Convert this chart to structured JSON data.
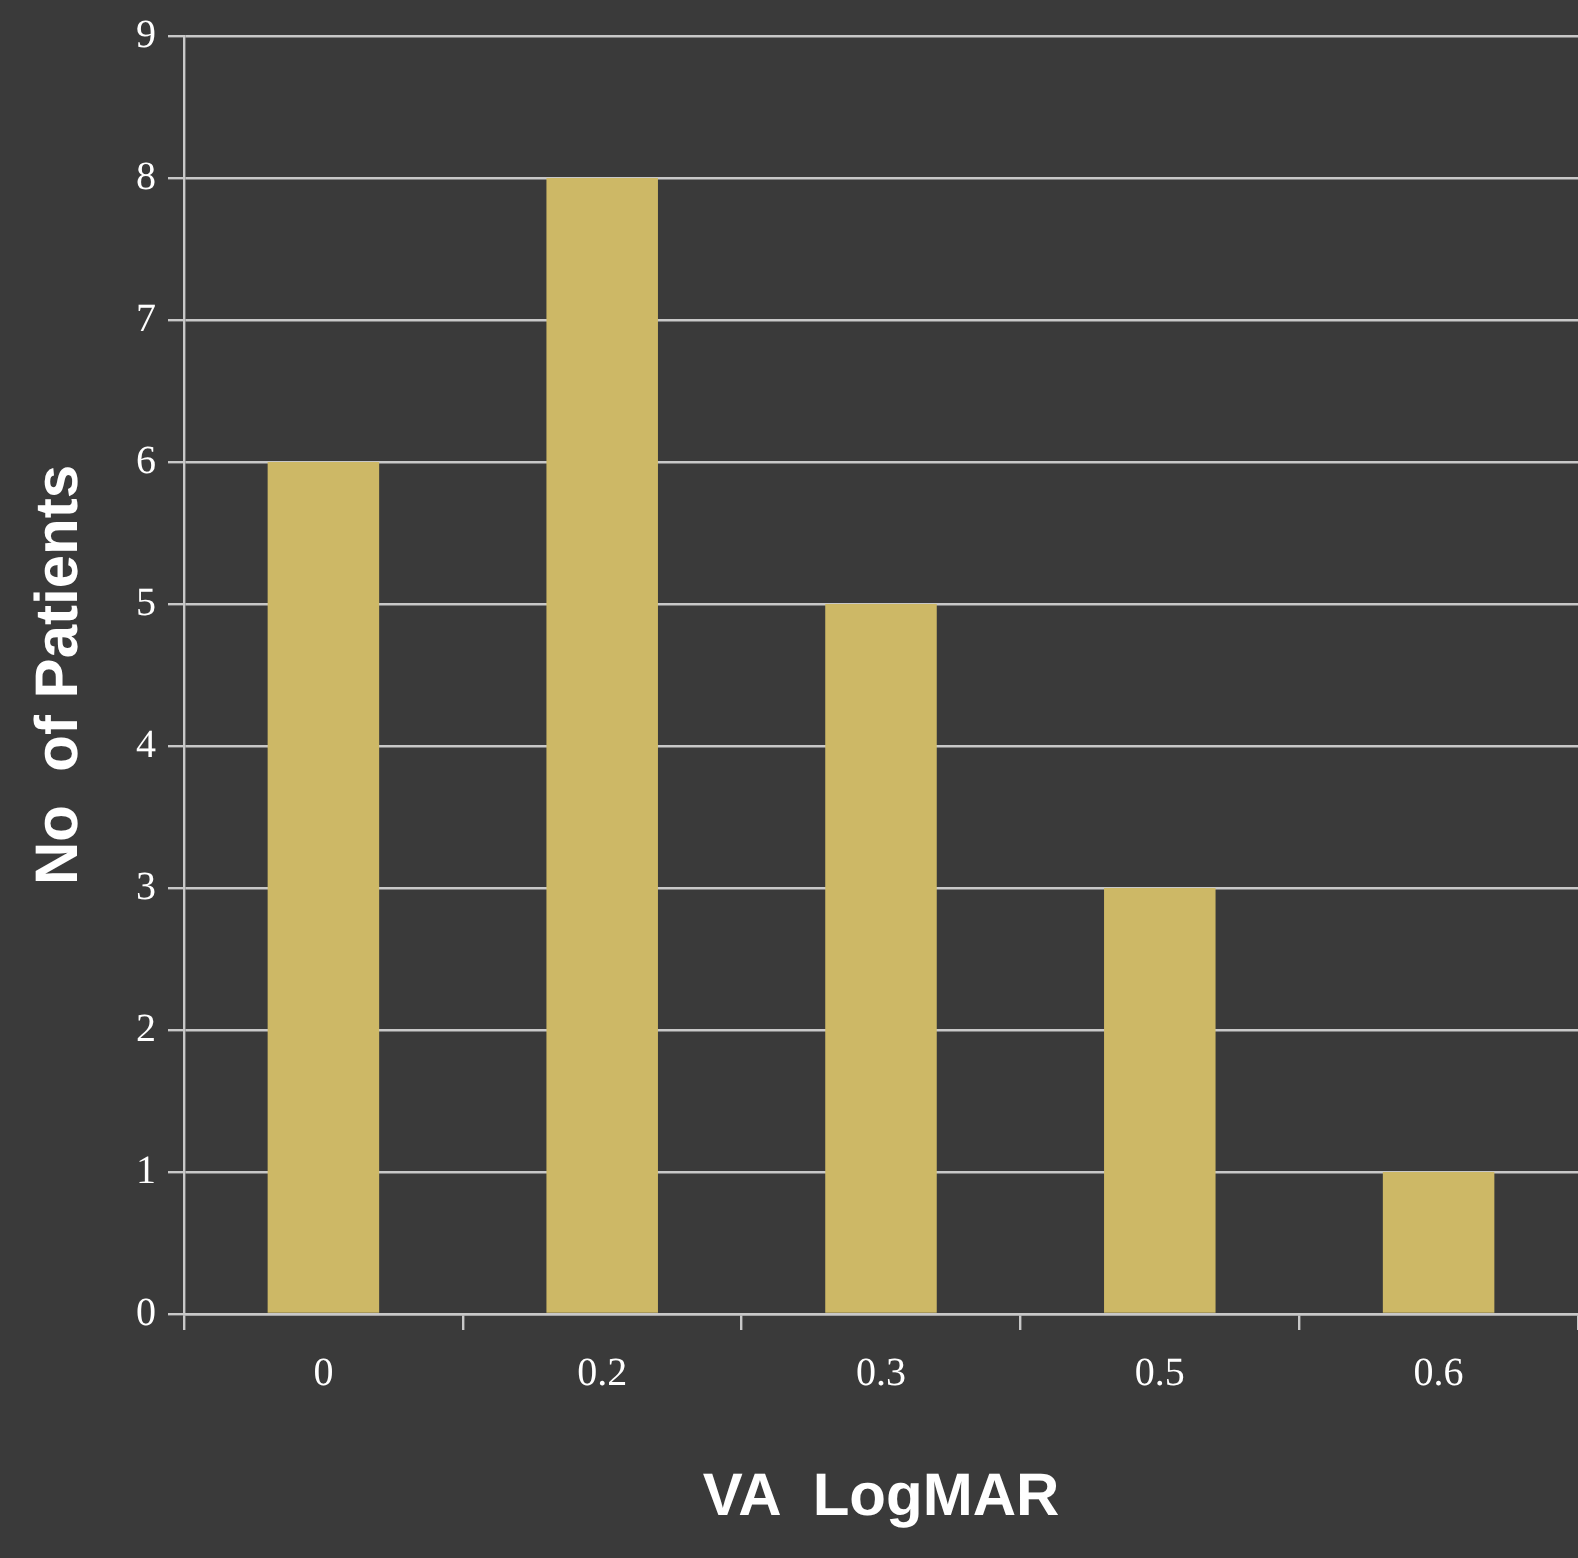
{
  "chart_data": {
    "type": "bar",
    "xlabel": "VA  LogMAR",
    "ylabel": "No  of Patients",
    "categories": [
      "0",
      "0.2",
      "0.3",
      "0.5",
      "0.6"
    ],
    "values": [
      6,
      8,
      5,
      3,
      1
    ],
    "color": "#cdb866",
    "ylim": [
      0,
      9
    ],
    "yticks": [
      0,
      1,
      2,
      3,
      4,
      5,
      6,
      7,
      8,
      9
    ],
    "grid": "y",
    "legend": false
  }
}
